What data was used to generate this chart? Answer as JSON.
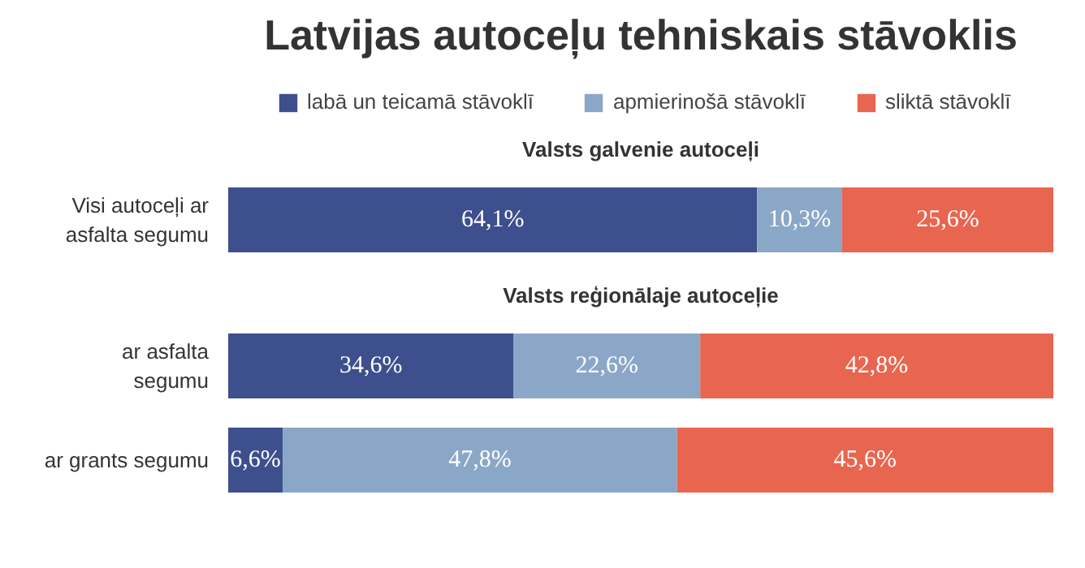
{
  "chart_data": [
    {
      "type": "bar",
      "orientation": "horizontal",
      "stacked": true,
      "title": "Latvijas autoceļu tehniskais stāvoklis",
      "subtitle": "Valsts galvenie autoceļi",
      "legend": "top",
      "grid": false,
      "categories": [
        "Visi autoceļi ar asfalta segumu"
      ],
      "series": [
        {
          "name": "labā un teicamā stāvoklī",
          "color": "#3d4f8c",
          "values": [
            64.1
          ],
          "value_labels": [
            "64,1%"
          ]
        },
        {
          "name": "apmierinošā stāvoklī",
          "color": "#8ba7c7",
          "values": [
            10.3
          ],
          "value_labels": [
            "10,3%"
          ]
        },
        {
          "name": "sliktā stāvoklī",
          "color": "#e8664f",
          "values": [
            25.6
          ],
          "value_labels": [
            "25,6%"
          ]
        }
      ]
    },
    {
      "type": "bar",
      "orientation": "horizontal",
      "stacked": true,
      "subtitle": "Valsts reģionālaje autoceļie",
      "grid": false,
      "categories": [
        "ar asfalta segumu",
        "ar grants segumu"
      ],
      "series": [
        {
          "color": "#3d4f8c",
          "values": [
            34.6,
            6.6
          ],
          "value_labels": [
            "34,6%",
            "6,6%"
          ]
        },
        {
          "color": "#8ba7c7",
          "values": [
            22.6,
            47.8
          ],
          "value_labels": [
            "22,6%",
            "47,8%"
          ]
        },
        {
          "color": "#e8664f",
          "values": [
            42.8,
            45.6
          ],
          "value_labels": [
            "42,8%",
            "45,6%"
          ]
        }
      ]
    }
  ]
}
